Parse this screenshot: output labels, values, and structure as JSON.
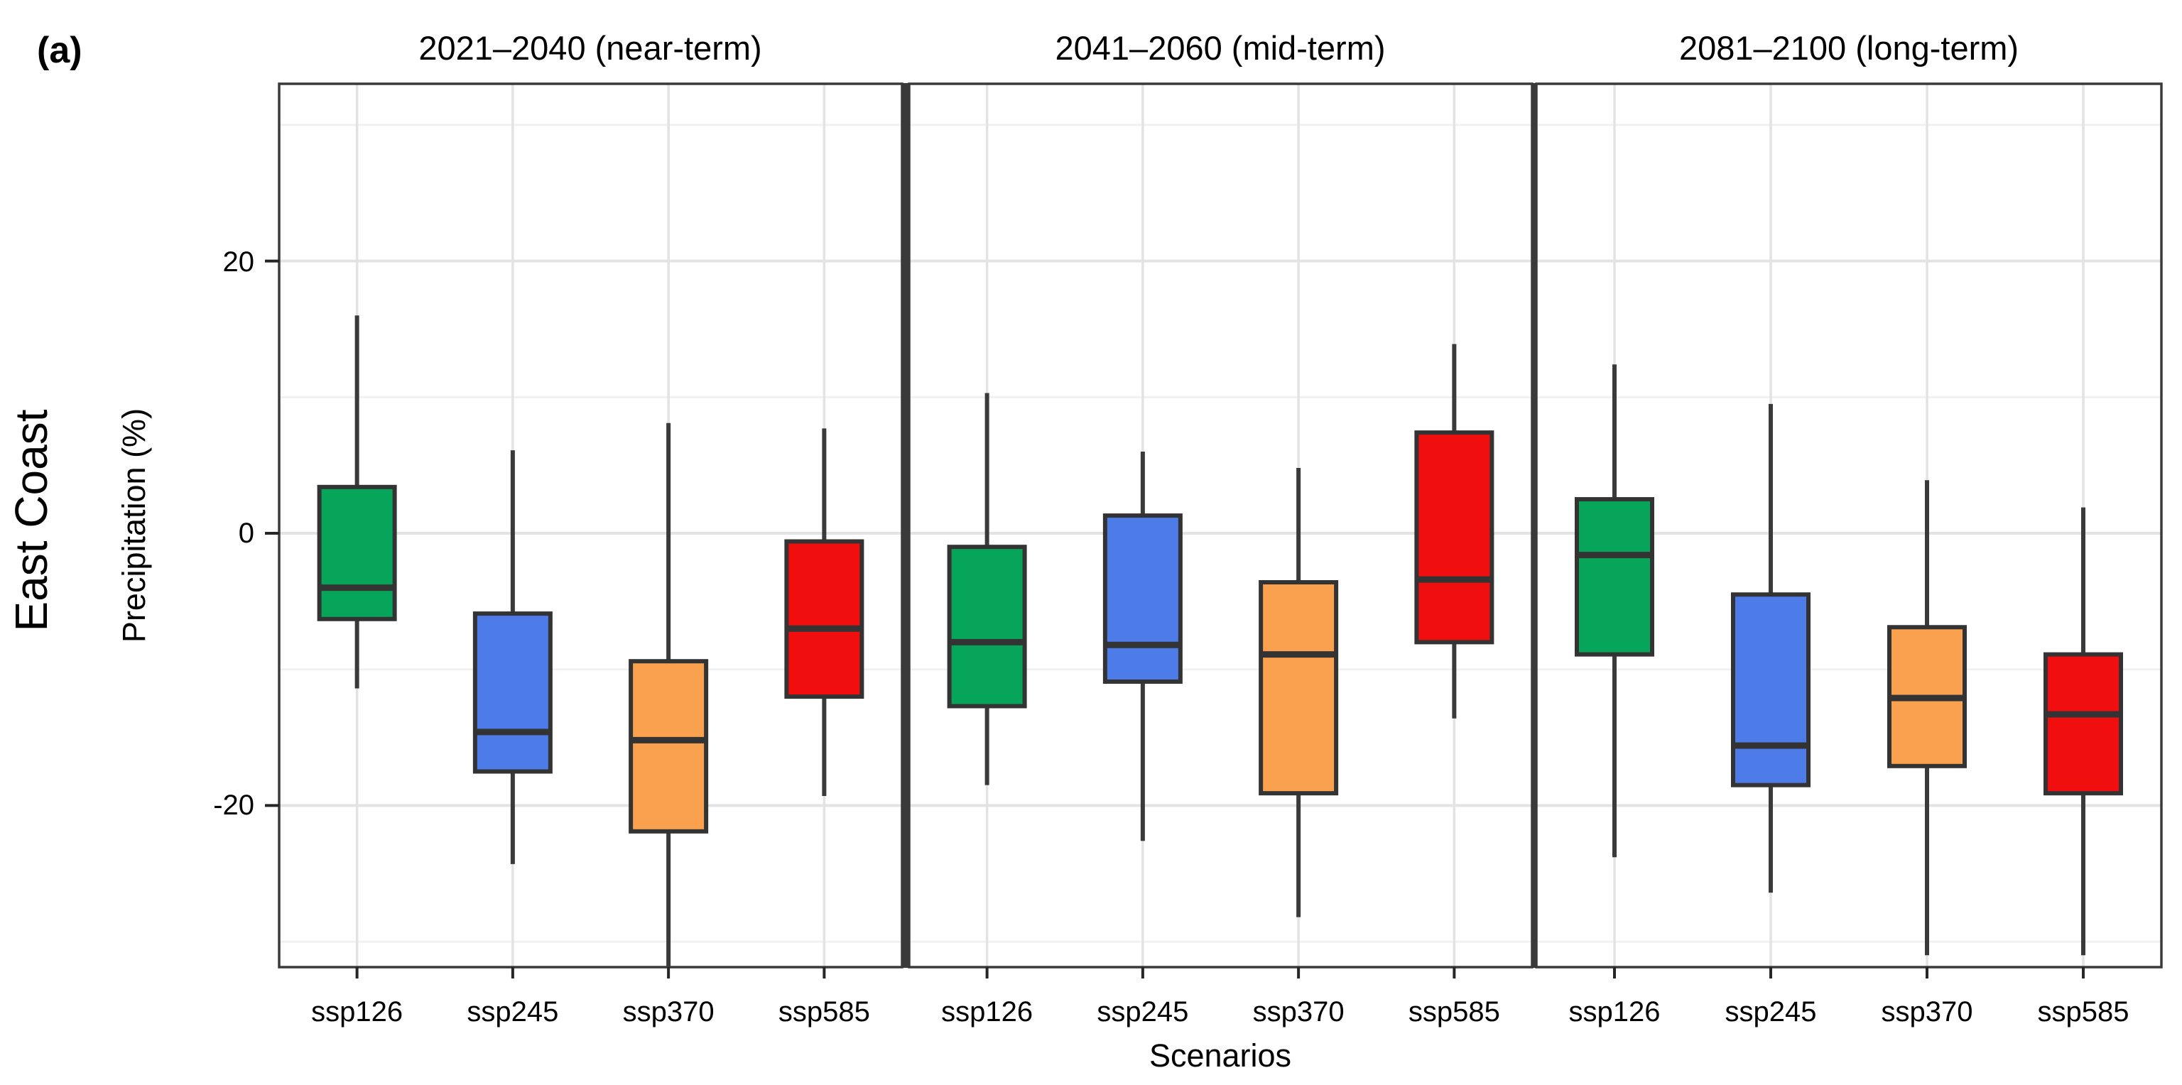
{
  "figure_label": "(a)",
  "colors": {
    "ssp126": "#06A55A",
    "ssp245": "#4D7CE8",
    "ssp370": "#F9A14E",
    "ssp585": "#F00E0E",
    "box_border": "#333333",
    "median_line": "#333333",
    "whisker": "#3A3A3A",
    "panel_border": "#3A3A3A",
    "facet_divider": "#3A3A3A",
    "grid_major": "#E3E3E3",
    "grid_minor": "#F1F1F1",
    "tick": "#262626",
    "text": "#000000",
    "background": "#FFFFFF"
  },
  "chart_data": {
    "type": "boxplot",
    "row_label": "East Coast",
    "ylabel": "Precipitation (%)",
    "xlabel": "Scenarios",
    "categories": [
      "ssp126",
      "ssp245",
      "ssp370",
      "ssp585"
    ],
    "y_ticks": [
      20,
      0,
      -20
    ],
    "y_minor_gridlines": [
      30,
      10,
      -10,
      -30
    ],
    "y_range": [
      -32,
      33
    ],
    "grid": true,
    "legend": false,
    "facets": [
      {
        "title": "2021–2040 (near-term)",
        "boxes": [
          {
            "scenario": "ssp126",
            "whisker_low": -11.4,
            "q1": -6.3,
            "median": -4.0,
            "q3": 3.4,
            "whisker_high": 16.0
          },
          {
            "scenario": "ssp245",
            "whisker_low": -24.3,
            "q1": -17.5,
            "median": -14.6,
            "q3": -5.9,
            "whisker_high": 6.1
          },
          {
            "scenario": "ssp370",
            "whisker_low": -31.8,
            "q1": -21.9,
            "median": -15.2,
            "q3": -9.4,
            "whisker_high": 8.1
          },
          {
            "scenario": "ssp585",
            "whisker_low": -19.3,
            "q1": -12.0,
            "median": -7.0,
            "q3": -0.6,
            "whisker_high": 7.7
          }
        ]
      },
      {
        "title": "2041–2060 (mid-term)",
        "boxes": [
          {
            "scenario": "ssp126",
            "whisker_low": -18.5,
            "q1": -12.7,
            "median": -8.0,
            "q3": -1.0,
            "whisker_high": 10.3
          },
          {
            "scenario": "ssp245",
            "whisker_low": -22.6,
            "q1": -10.9,
            "median": -8.2,
            "q3": 1.3,
            "whisker_high": 6.0
          },
          {
            "scenario": "ssp370",
            "whisker_low": -28.2,
            "q1": -19.1,
            "median": -8.9,
            "q3": -3.6,
            "whisker_high": 4.8
          },
          {
            "scenario": "ssp585",
            "whisker_low": -13.6,
            "q1": -8.0,
            "median": -3.4,
            "q3": 7.4,
            "whisker_high": 13.9
          }
        ]
      },
      {
        "title": "2081–2100 (long-term)",
        "boxes": [
          {
            "scenario": "ssp126",
            "whisker_low": -23.8,
            "q1": -8.9,
            "median": -1.6,
            "q3": 2.5,
            "whisker_high": 12.4
          },
          {
            "scenario": "ssp245",
            "whisker_low": -26.4,
            "q1": -18.5,
            "median": -15.6,
            "q3": -4.5,
            "whisker_high": 9.5
          },
          {
            "scenario": "ssp370",
            "whisker_low": -31.0,
            "q1": -17.1,
            "median": -12.1,
            "q3": -6.9,
            "whisker_high": 3.9
          },
          {
            "scenario": "ssp585",
            "whisker_low": -31.0,
            "q1": -19.1,
            "median": -13.3,
            "q3": -8.9,
            "whisker_high": 1.9
          }
        ]
      }
    ]
  }
}
